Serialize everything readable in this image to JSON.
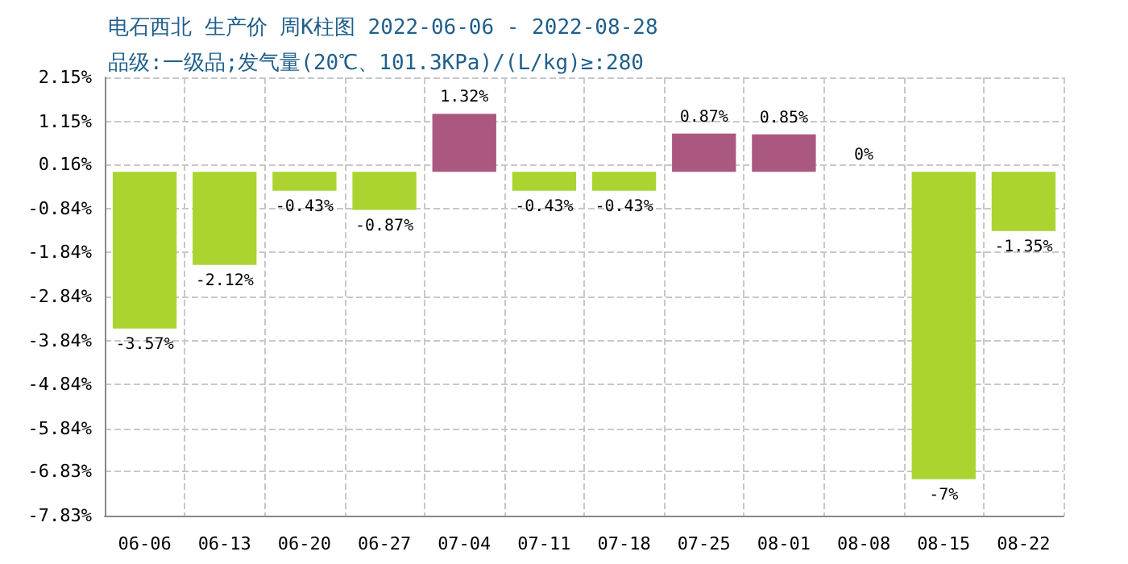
{
  "chart_data": {
    "type": "bar",
    "title": "电石西北 生产价 周K柱图 2022-06-06 - 2022-08-28",
    "subtitle": "品级:一级品;发气量(20℃、101.3KPa)/(L/kg)≥:280",
    "categories": [
      "06-06",
      "06-13",
      "06-20",
      "06-27",
      "07-04",
      "07-11",
      "07-18",
      "07-25",
      "08-01",
      "08-08",
      "08-15",
      "08-22"
    ],
    "values": [
      -3.57,
      -2.12,
      -0.43,
      -0.87,
      1.32,
      -0.43,
      -0.43,
      0.87,
      0.85,
      0,
      -7,
      -1.35
    ],
    "value_labels": [
      "-3.57%",
      "-2.12%",
      "-0.43%",
      "-0.87%",
      "1.32%",
      "-0.43%",
      "-0.43%",
      "0.87%",
      "0.85%",
      "0%",
      "-7%",
      "-1.35%"
    ],
    "colors": [
      "#acd431",
      "#acd431",
      "#acd431",
      "#acd431",
      "#ab5880",
      "#acd431",
      "#acd431",
      "#ab5880",
      "#ab5880",
      "#ab5880",
      "#acd431",
      "#acd431"
    ],
    "ylim": [
      -7.83,
      2.15
    ],
    "yticks": [
      {
        "value": -7.83,
        "label": "-7.83%"
      },
      {
        "value": -6.83,
        "label": "-6.83%"
      },
      {
        "value": -5.84,
        "label": "-5.84%"
      },
      {
        "value": -4.84,
        "label": "-4.84%"
      },
      {
        "value": -3.84,
        "label": "-3.84%"
      },
      {
        "value": -2.84,
        "label": "-2.84%"
      },
      {
        "value": -1.84,
        "label": "-1.84%"
      },
      {
        "value": -0.84,
        "label": "-0.84%"
      },
      {
        "value": 0.16,
        "label": "0.16%"
      },
      {
        "value": 1.15,
        "label": "1.15%"
      },
      {
        "value": 2.15,
        "label": "2.15%"
      }
    ],
    "grid": true
  }
}
